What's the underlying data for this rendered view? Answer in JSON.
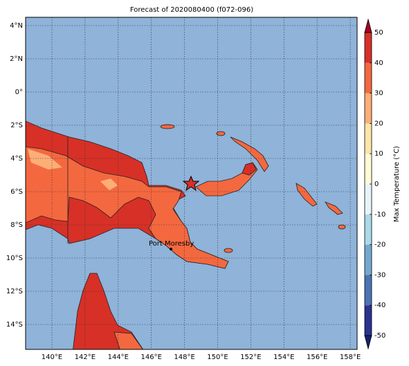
{
  "title": "Forecast of 2020080400 (f072-096)",
  "latitude_labels": [
    "4°N",
    "2°N",
    "0°",
    "2°S",
    "4°S",
    "6°S",
    "8°S",
    "10°S",
    "12°S",
    "14°S"
  ],
  "longitude_labels": [
    "140°E",
    "142°E",
    "144°E",
    "146°E",
    "148°E",
    "150°E",
    "152°E",
    "154°E",
    "156°E",
    "158°E"
  ],
  "place_label": "Port Moresby",
  "colorbar": {
    "label": "Max Temperature (°C)",
    "ticks": [
      -50,
      -40,
      -30,
      -20,
      -10,
      0,
      10,
      20,
      30,
      40,
      50
    ],
    "colors": [
      "#2b3390",
      "#4a74b4",
      "#74a9cf",
      "#abd9e9",
      "#e6f5f8",
      "#fffbd5",
      "#fee5a8",
      "#fdae77",
      "#f4683f",
      "#d73027"
    ],
    "under_color": "#1a1f6e",
    "over_color": "#a50026"
  }
}
